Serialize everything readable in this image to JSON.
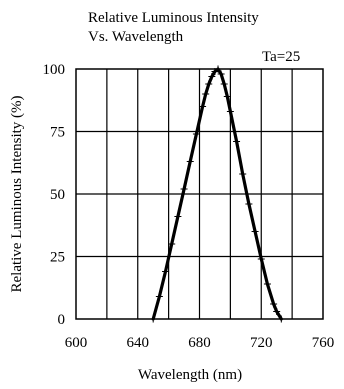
{
  "chart_data": {
    "type": "line",
    "title_lines": [
      "Relative Luminous Intensity",
      "Vs. Wavelength"
    ],
    "annotation": "Ta=25",
    "xlabel": "Wavelength (nm)",
    "ylabel": "Relative   Luminous  Intensity (%)",
    "xlim": [
      600,
      760
    ],
    "ylim": [
      0,
      100
    ],
    "x_ticks": [
      600,
      640,
      680,
      720,
      760
    ],
    "y_ticks": [
      0,
      25,
      50,
      75,
      100
    ],
    "grid": true,
    "series": [
      {
        "x": [
          650,
          654,
          658,
          662,
          666,
          670,
          674,
          678,
          682,
          684,
          686,
          688,
          690,
          692,
          694,
          696,
          698,
          700,
          704,
          708,
          712,
          716,
          720,
          724,
          728,
          730,
          733
        ],
        "y": [
          0,
          9,
          19,
          30,
          41,
          52,
          63,
          74,
          85,
          90,
          94,
          97,
          99,
          100,
          98,
          94,
          89,
          83,
          71,
          58,
          46,
          35,
          24,
          14,
          6,
          3,
          0
        ]
      }
    ],
    "colors": {
      "axis": "#000000",
      "grid": "#000000",
      "line": "#000000"
    }
  }
}
